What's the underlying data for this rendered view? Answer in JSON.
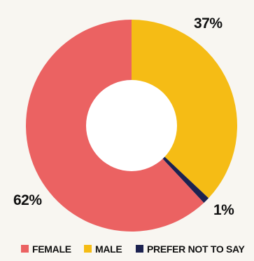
{
  "chart_data": {
    "type": "pie",
    "variant": "donut",
    "title": "",
    "categories": [
      "FEMALE",
      "MALE",
      "PREFER NOT TO SAY"
    ],
    "values": [
      62,
      37,
      1
    ],
    "value_labels": [
      "62%",
      "37%",
      "1%"
    ],
    "colors": [
      "#eb6262",
      "#f5bc15",
      "#1c2250"
    ],
    "legend_position": "bottom"
  },
  "colors": {
    "background": "#f8f6f1",
    "center": "#ffffff",
    "text": "#111111"
  }
}
